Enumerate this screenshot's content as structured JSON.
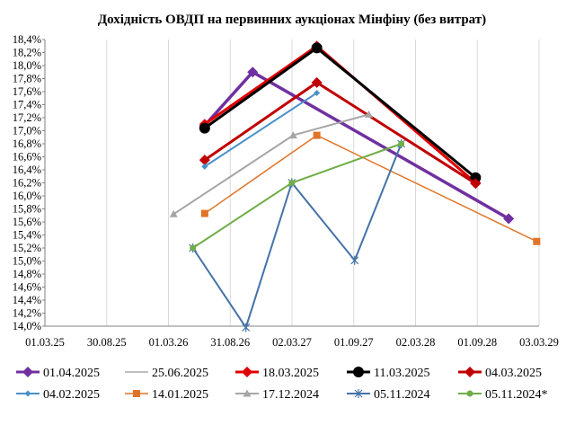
{
  "chart_data": {
    "type": "line",
    "title": "Дохідність ОВДП на первинних аукціонах Мінфіну (без витрат)",
    "xlabel": "",
    "ylabel": "",
    "x_axis_type": "date",
    "xlim": [
      "2025-03-01",
      "2029-03-03"
    ],
    "x_ticks": [
      "01.03.25",
      "30.08.25",
      "01.03.26",
      "31.08.26",
      "02.03.27",
      "01.09.27",
      "02.03.28",
      "01.09.28",
      "03.03.29"
    ],
    "ylim": [
      14.0,
      18.4
    ],
    "y_ticks": [
      "14,0%",
      "14,2%",
      "14,4%",
      "14,6%",
      "14,8%",
      "15,0%",
      "15,2%",
      "15,4%",
      "15,6%",
      "15,8%",
      "16,0%",
      "16,2%",
      "16,4%",
      "16,6%",
      "16,8%",
      "17,0%",
      "17,2%",
      "17,4%",
      "17,6%",
      "17,8%",
      "18,0%",
      "18,2%",
      "18,4%"
    ],
    "grid": "vertical",
    "legend_position": "bottom",
    "series": [
      {
        "name": "01.04.2025",
        "color": "#7030A0",
        "marker": "diamond",
        "width": 3.5,
        "points": [
          [
            "2026-06-17",
            17.08
          ],
          [
            "2026-11-06",
            17.9
          ],
          [
            "2028-12-03",
            15.65
          ]
        ]
      },
      {
        "name": "25.06.2025",
        "color": "#BFBFBF",
        "marker": "none",
        "width": 2,
        "points": []
      },
      {
        "name": "18.03.2025",
        "color": "#E00000",
        "marker": "diamond",
        "width": 3,
        "points": [
          [
            "2026-06-17",
            17.1
          ],
          [
            "2027-05-15",
            18.3
          ],
          [
            "2028-08-27",
            16.2
          ]
        ]
      },
      {
        "name": "11.03.2025",
        "color": "#000000",
        "marker": "circle",
        "width": 3,
        "points": [
          [
            "2026-06-17",
            17.04
          ],
          [
            "2027-05-15",
            18.27
          ],
          [
            "2028-08-27",
            16.28
          ]
        ]
      },
      {
        "name": "04.03.2025",
        "color": "#C00000",
        "marker": "diamond",
        "width": 3,
        "points": [
          [
            "2026-06-17",
            16.55
          ],
          [
            "2027-05-15",
            17.74
          ],
          [
            "2028-08-27",
            16.19
          ]
        ]
      },
      {
        "name": "04.02.2025",
        "color": "#4A90C8",
        "marker": "diamond-small",
        "width": 2,
        "points": [
          [
            "2026-06-17",
            16.45
          ],
          [
            "2027-05-15",
            17.58
          ]
        ]
      },
      {
        "name": "14.01.2025",
        "color": "#E07428",
        "marker": "square",
        "width": 1.5,
        "points": [
          [
            "2026-06-17",
            15.73
          ],
          [
            "2027-05-15",
            16.93
          ],
          [
            "2029-02-24",
            15.3
          ]
        ]
      },
      {
        "name": "17.12.2024",
        "color": "#A6A6A6",
        "marker": "triangle",
        "width": 2,
        "points": [
          [
            "2026-03-17",
            15.72
          ],
          [
            "2027-03-06",
            16.93
          ],
          [
            "2027-10-16",
            17.25
          ]
        ]
      },
      {
        "name": "05.11.2024",
        "color": "#4472A8",
        "marker": "star",
        "width": 2,
        "points": [
          [
            "2026-05-13",
            15.2
          ],
          [
            "2026-10-17",
            13.98
          ],
          [
            "2027-03-02",
            16.2
          ],
          [
            "2027-09-04",
            15.01
          ],
          [
            "2028-01-20",
            16.8
          ]
        ]
      },
      {
        "name": "05.11.2024*",
        "color": "#70AD47",
        "marker": "circle-small",
        "width": 2,
        "points": [
          [
            "2026-05-13",
            15.2
          ],
          [
            "2027-03-02",
            16.2
          ],
          [
            "2028-01-20",
            16.8
          ]
        ]
      }
    ]
  }
}
